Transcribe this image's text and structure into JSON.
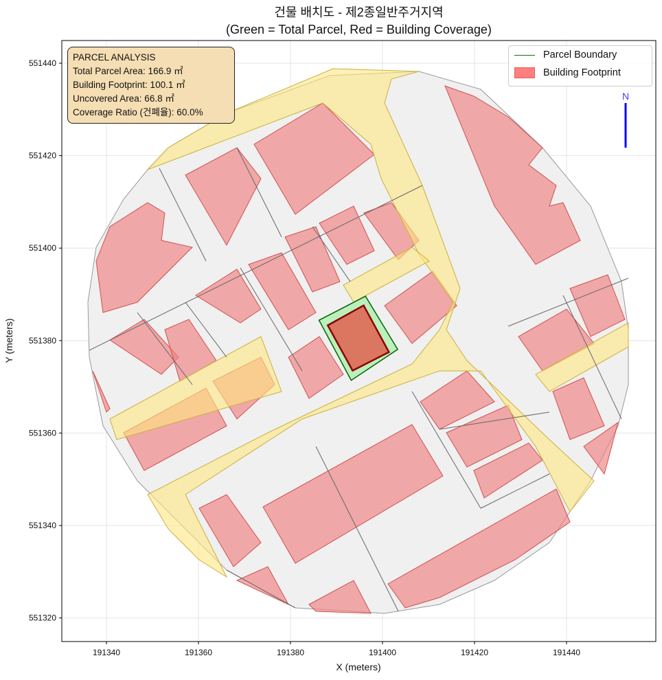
{
  "title_line1": "건물 배치도 - 제2종일반주거지역",
  "title_line2": "(Green = Total Parcel, Red = Building Coverage)",
  "info_box": {
    "heading": "PARCEL ANALYSIS",
    "total_area": "Total Parcel Area: 166.9 ㎡",
    "footprint": "Building Footprint: 100.1 ㎡",
    "uncovered": "Uncovered Area: 66.8 ㎡",
    "coverage": "Coverage Ratio (건폐율): 60.0%"
  },
  "legend": {
    "parcel": "Parcel Boundary",
    "building": "Building Footprint"
  },
  "north_label": "N",
  "colors": {
    "parcel_edge": "#006400",
    "parcel_fill": "#90ee90",
    "building_edge": "#8b0000",
    "building_fill": "#e06050",
    "road": "#ffe680",
    "context_building": "#f08080"
  },
  "chart_data": {
    "type": "map",
    "xlabel": "X (meters)",
    "ylabel": "Y (meters)",
    "xlim": [
      191330.3,
      191459.4
    ],
    "ylim": [
      551314.9,
      551444.9
    ],
    "xticks": [
      191340,
      191360,
      191380,
      191400,
      191420,
      191440
    ],
    "yticks": [
      551320,
      551340,
      551360,
      551380,
      551400,
      551420,
      551440
    ],
    "grid": true,
    "legend_position": "top-right",
    "target_parcel": [
      [
        191386.2,
        551384.4
      ],
      [
        191396.3,
        551389.6
      ],
      [
        191403.3,
        551378.1
      ],
      [
        191393.2,
        551371.4
      ]
    ],
    "target_building": [
      [
        191388.1,
        551383.3
      ],
      [
        191395.9,
        551387.6
      ],
      [
        191401.4,
        551377.5
      ],
      [
        191393.5,
        551373.5
      ]
    ]
  }
}
